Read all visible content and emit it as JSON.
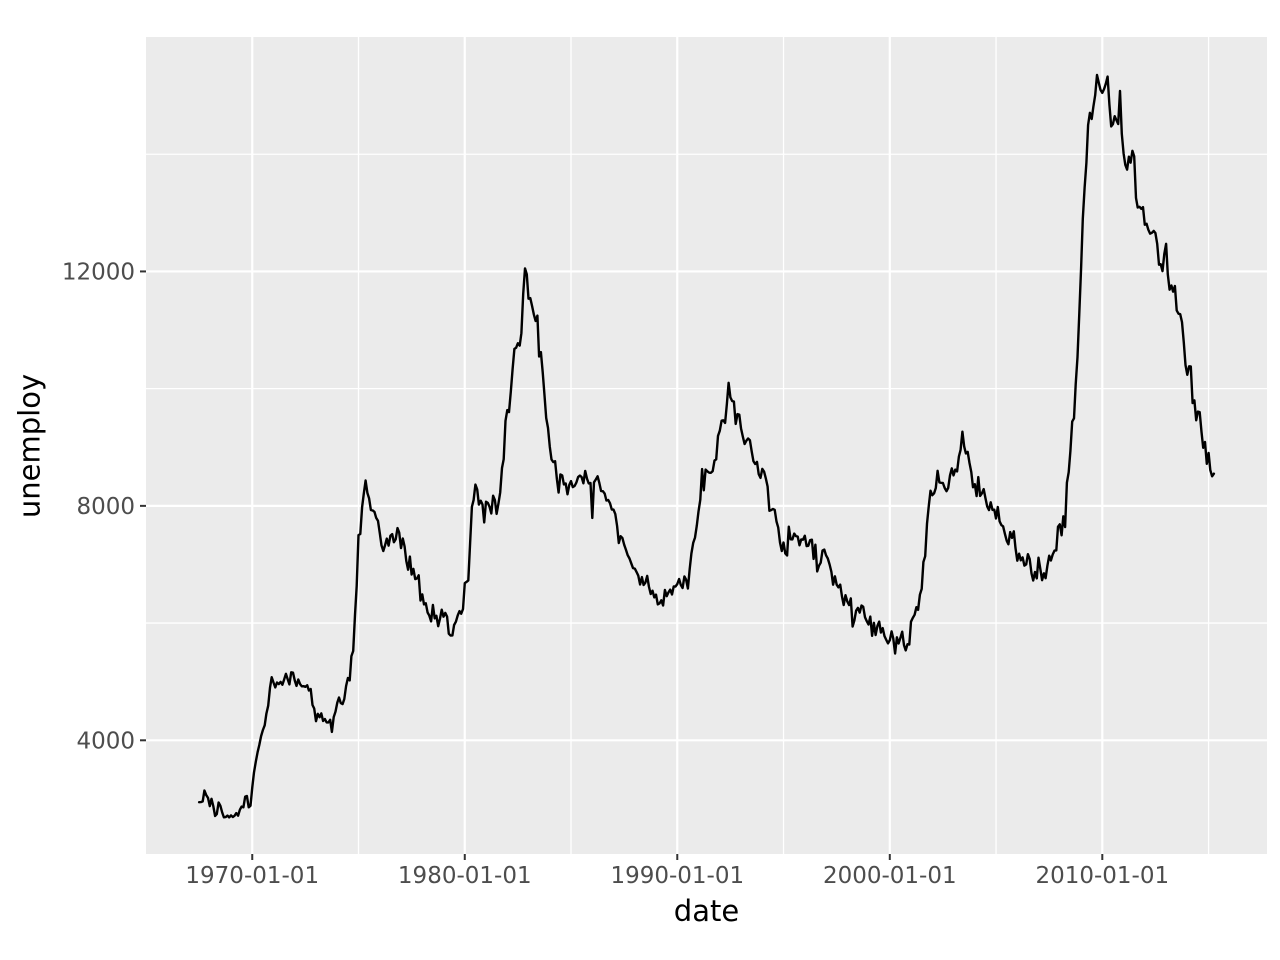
{
  "figure": {
    "background": "#FFFFFF"
  },
  "chart_data": {
    "type": "line",
    "title": "",
    "xlabel": "date",
    "ylabel": "unemploy",
    "legend": "none",
    "grid": "on",
    "panel_bg": "#EBEBEB",
    "grid_color": "#FFFFFF",
    "series_color": "#000000",
    "tick_label_color": "#4D4D4D",
    "tick_mark_color": "#333333",
    "axis_title_color": "#000000",
    "x_domain_years": [
      1965.0,
      2017.75
    ],
    "y_domain": [
      2060,
      16000
    ],
    "x_ticks": [
      {
        "label": "1970-01-01",
        "t": 1970.0
      },
      {
        "label": "1980-01-01",
        "t": 1980.0
      },
      {
        "label": "1990-01-01",
        "t": 1990.0
      },
      {
        "label": "2000-01-01",
        "t": 2000.0
      },
      {
        "label": "2010-01-01",
        "t": 2010.0
      }
    ],
    "x_minor_ticks": [
      1975.0,
      1985.0,
      1995.0,
      2005.0,
      2015.0
    ],
    "y_ticks": [
      {
        "label": "4000",
        "v": 4000
      },
      {
        "label": "8000",
        "v": 8000
      },
      {
        "label": "12000",
        "v": 12000
      }
    ],
    "y_minor_ticks": [
      6000,
      10000,
      14000
    ],
    "series": [
      {
        "name": "unemploy",
        "start": "1967-07-01",
        "start_year_fraction": 1967.5,
        "frequency_per_year": 12,
        "values": [
          2944,
          2945,
          2958,
          3143,
          3066,
          3018,
          2878,
          3001,
          2877,
          2709,
          2740,
          2938,
          2883,
          2768,
          2686,
          2689,
          2715,
          2685,
          2718,
          2692,
          2712,
          2758,
          2713,
          2816,
          2868,
          2856,
          3040,
          3049,
          2856,
          2884,
          3201,
          3453,
          3635,
          3797,
          3919,
          4071,
          4175,
          4256,
          4456,
          4591,
          4898,
          5076,
          4986,
          4903,
          4987,
          4959,
          4996,
          4949,
          5035,
          5134,
          5042,
          4954,
          5161,
          5154,
          5019,
          4928,
          5038,
          4959,
          4922,
          4923,
          4913,
          4939,
          4849,
          4875,
          4602,
          4543,
          4326,
          4452,
          4394,
          4459,
          4329,
          4363,
          4305,
          4305,
          4350,
          4144,
          4396,
          4489,
          4644,
          4731,
          4634,
          4618,
          4705,
          4927,
          5063,
          5022,
          5437,
          5523,
          6140,
          6636,
          7501,
          7520,
          7978,
          8210,
          8433,
          8220,
          8127,
          7928,
          7923,
          7897,
          7794,
          7744,
          7534,
          7326,
          7230,
          7330,
          7441,
          7322,
          7490,
          7518,
          7380,
          7430,
          7620,
          7545,
          7280,
          7443,
          7307,
          7059,
          6911,
          7134,
          6829,
          6925,
          6751,
          6763,
          6815,
          6386,
          6489,
          6318,
          6337,
          6180,
          6127,
          6028,
          6309,
          6080,
          6125,
          5947,
          6077,
          6228,
          6109,
          6173,
          6109,
          5819,
          5786,
          5789,
          5968,
          6023,
          6129,
          6205,
          6160,
          6238,
          6683,
          6702,
          6729,
          7358,
          7984,
          8098,
          8363,
          8281,
          8021,
          8088,
          8023,
          7718,
          8071,
          8051,
          7982,
          7869,
          8174,
          8098,
          7863,
          8036,
          8230,
          8646,
          8796,
          9451,
          9634,
          9600,
          9947,
          10333,
          10679,
          10697,
          10775,
          10735,
          10947,
          11616,
          12051,
          11949,
          11534,
          11545,
          11408,
          11268,
          11154,
          11246,
          10548,
          10623,
          10282,
          9887,
          9499,
          9331,
          9008,
          8791,
          8746,
          8762,
          8456,
          8226,
          8537,
          8519,
          8367,
          8381,
          8198,
          8358,
          8423,
          8321,
          8339,
          8395,
          8491,
          8516,
          8493,
          8385,
          8597,
          8465,
          8384,
          8390,
          7795,
          8402,
          8450,
          8505,
          8386,
          8252,
          8251,
          8210,
          8091,
          8100,
          8046,
          7936,
          7937,
          7859,
          7656,
          7366,
          7482,
          7452,
          7335,
          7253,
          7158,
          7102,
          7022,
          6938,
          6929,
          6874,
          6808,
          6658,
          6785,
          6650,
          6691,
          6805,
          6624,
          6496,
          6552,
          6438,
          6486,
          6318,
          6337,
          6389,
          6300,
          6564,
          6458,
          6522,
          6571,
          6487,
          6625,
          6625,
          6667,
          6752,
          6651,
          6598,
          6797,
          6742,
          6590,
          6922,
          7188,
          7368,
          7459,
          7664,
          7904,
          8105,
          8628,
          8265,
          8618,
          8588,
          8566,
          8564,
          8593,
          8774,
          8793,
          9193,
          9283,
          9454,
          9460,
          9415,
          9744,
          10099,
          9850,
          9787,
          9781,
          9398,
          9565,
          9557,
          9325,
          9183,
          9056,
          9110,
          9149,
          9121,
          8930,
          8763,
          8714,
          8750,
          8542,
          8477,
          8630,
          8583,
          8470,
          8331,
          7915,
          7927,
          7946,
          7933,
          7734,
          7632,
          7375,
          7230,
          7375,
          7187,
          7153,
          7645,
          7430,
          7427,
          7527,
          7484,
          7478,
          7328,
          7426,
          7423,
          7491,
          7313,
          7318,
          7415,
          7423,
          7095,
          7337,
          6882,
          6979,
          7031,
          7236,
          7253,
          7158,
          7102,
          7000,
          6873,
          6655,
          6799,
          6655,
          6608,
          6656,
          6454,
          6308,
          6476,
          6368,
          6306,
          6422,
          5941,
          6047,
          6212,
          6259,
          6179,
          6300,
          6280,
          6100,
          6032,
          5976,
          6111,
          5783,
          6004,
          5796,
          5951,
          6025,
          5838,
          5915,
          5778,
          5716,
          5653,
          5708,
          5858,
          5733,
          5481,
          5758,
          5651,
          5747,
          5853,
          5625,
          5534,
          5639,
          5634,
          6023,
          6089,
          6141,
          6271,
          6226,
          6484,
          6583,
          7042,
          7142,
          7694,
          8003,
          8258,
          8182,
          8215,
          8304,
          8599,
          8399,
          8393,
          8390,
          8304,
          8251,
          8307,
          8520,
          8640,
          8520,
          8618,
          8588,
          8842,
          8957,
          9266,
          9011,
          8896,
          8921,
          8732,
          8576,
          8317,
          8370,
          8167,
          8491,
          8170,
          8212,
          8286,
          8136,
          7990,
          7927,
          8061,
          7932,
          7934,
          7784,
          7980,
          7737,
          7672,
          7651,
          7524,
          7406,
          7345,
          7553,
          7453,
          7566,
          7279,
          7064,
          7184,
          7072,
          7120,
          6980,
          7001,
          7175,
          7091,
          6847,
          6727,
          6872,
          6762,
          7116,
          6927,
          6731,
          6850,
          6766,
          6979,
          7149,
          7067,
          7170,
          7237,
          7240,
          7645,
          7685,
          7497,
          7822,
          7637,
          8395,
          8575,
          8937,
          9438,
          9494,
          10074,
          10538,
          11286,
          12058,
          12898,
          13426,
          13853,
          14499,
          14707,
          14601,
          14814,
          15009,
          15352,
          15219,
          15098,
          15046,
          15113,
          15202,
          15325,
          14849,
          14474,
          14512,
          14648,
          14579,
          14516,
          15081,
          14348,
          14013,
          13820,
          13737,
          13957,
          13855,
          14059,
          13962,
          13255,
          13091,
          13102,
          13069,
          13097,
          12797,
          12813,
          12713,
          12646,
          12660,
          12692,
          12656,
          12471,
          12115,
          12124,
          12005,
          12298,
          12471,
          11950,
          11689,
          11760,
          11654,
          11751,
          11335,
          11279,
          11270,
          11136,
          10787,
          10404,
          10236,
          10381,
          10380,
          9753,
          9799,
          9460,
          9608,
          9599,
          9262,
          8990,
          9090,
          8717,
          8903,
          8610,
          8504,
          8549
        ]
      }
    ]
  }
}
